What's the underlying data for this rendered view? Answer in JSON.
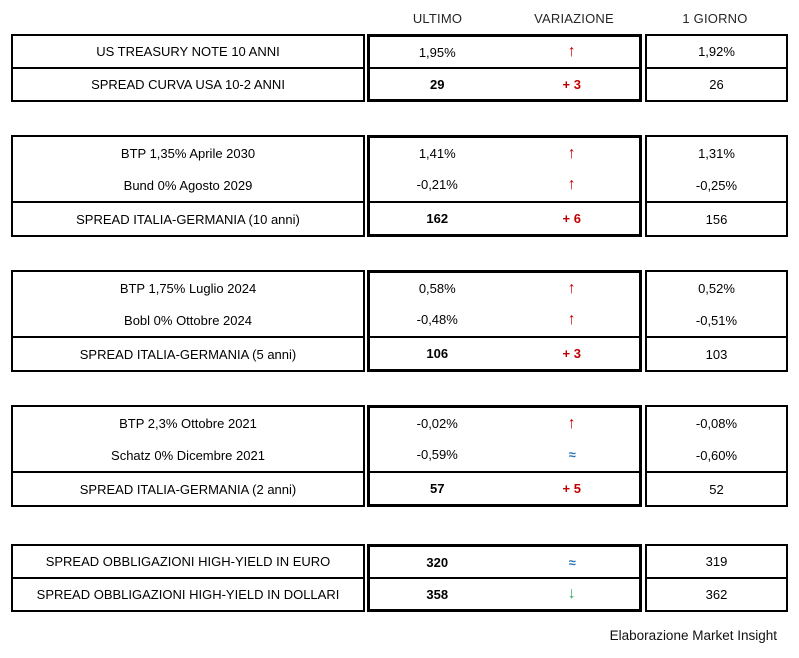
{
  "header": {
    "columns": [
      "ULTIMO",
      "VARIAZIONE",
      "1 GIORNO"
    ]
  },
  "footer": {
    "credit": "Elaborazione Market Insight"
  },
  "colors": {
    "up_arrow": "#c00000",
    "delta_text": "#c00000",
    "flat_arrow": "#2e75b6",
    "down_arrow": "#2fad6a",
    "border": "#000000"
  },
  "glyphs": {
    "up": "↑",
    "down": "↓",
    "flat": "≈"
  },
  "chart_data": {
    "type": "table",
    "columns": [
      "",
      "ULTIMO",
      "VARIAZIONE",
      "1 GIORNO"
    ],
    "groups": [
      {
        "rows": [
          {
            "label": "US TREASURY NOTE 10 ANNI",
            "ultimo": "1,95%",
            "variazione": {
              "kind": "arrow",
              "direction": "up"
            },
            "giorno": "1,92%",
            "emphasis": false
          },
          {
            "label": "SPREAD CURVA USA 10-2 ANNI",
            "ultimo": "29",
            "variazione": {
              "kind": "delta",
              "text": "+ 3"
            },
            "giorno": "26",
            "emphasis": true
          }
        ]
      },
      {
        "rows": [
          {
            "label": "BTP 1,35% Aprile 2030",
            "ultimo": "1,41%",
            "variazione": {
              "kind": "arrow",
              "direction": "up"
            },
            "giorno": "1,31%",
            "emphasis": false
          },
          {
            "label": "Bund 0% Agosto 2029",
            "ultimo": "-0,21%",
            "variazione": {
              "kind": "arrow",
              "direction": "up"
            },
            "giorno": "-0,25%",
            "emphasis": false
          },
          {
            "label": "SPREAD ITALIA-GERMANIA (10 anni)",
            "ultimo": "162",
            "variazione": {
              "kind": "delta",
              "text": "+ 6"
            },
            "giorno": "156",
            "emphasis": true
          }
        ]
      },
      {
        "rows": [
          {
            "label": "BTP 1,75% Luglio 2024",
            "ultimo": "0,58%",
            "variazione": {
              "kind": "arrow",
              "direction": "up"
            },
            "giorno": "0,52%",
            "emphasis": false
          },
          {
            "label": "Bobl 0% Ottobre 2024",
            "ultimo": "-0,48%",
            "variazione": {
              "kind": "arrow",
              "direction": "up"
            },
            "giorno": "-0,51%",
            "emphasis": false
          },
          {
            "label": "SPREAD ITALIA-GERMANIA (5 anni)",
            "ultimo": "106",
            "variazione": {
              "kind": "delta",
              "text": "+ 3"
            },
            "giorno": "103",
            "emphasis": true
          }
        ]
      },
      {
        "rows": [
          {
            "label": "BTP 2,3% Ottobre 2021",
            "ultimo": "-0,02%",
            "variazione": {
              "kind": "arrow",
              "direction": "up"
            },
            "giorno": "-0,08%",
            "emphasis": false
          },
          {
            "label": "Schatz 0% Dicembre 2021",
            "ultimo": "-0,59%",
            "variazione": {
              "kind": "arrow",
              "direction": "flat"
            },
            "giorno": "-0,60%",
            "emphasis": false
          },
          {
            "label": "SPREAD ITALIA-GERMANIA (2 anni)",
            "ultimo": "57",
            "variazione": {
              "kind": "delta",
              "text": "+ 5"
            },
            "giorno": "52",
            "emphasis": true
          }
        ]
      },
      {
        "rows": [
          {
            "label": "SPREAD OBBLIGAZIONI HIGH-YIELD IN EURO",
            "ultimo": "320",
            "variazione": {
              "kind": "arrow",
              "direction": "flat"
            },
            "giorno": "319",
            "emphasis": true
          },
          {
            "label": "SPREAD OBBLIGAZIONI HIGH-YIELD IN DOLLARI",
            "ultimo": "358",
            "variazione": {
              "kind": "arrow",
              "direction": "down"
            },
            "giorno": "362",
            "emphasis": true
          }
        ]
      }
    ]
  }
}
